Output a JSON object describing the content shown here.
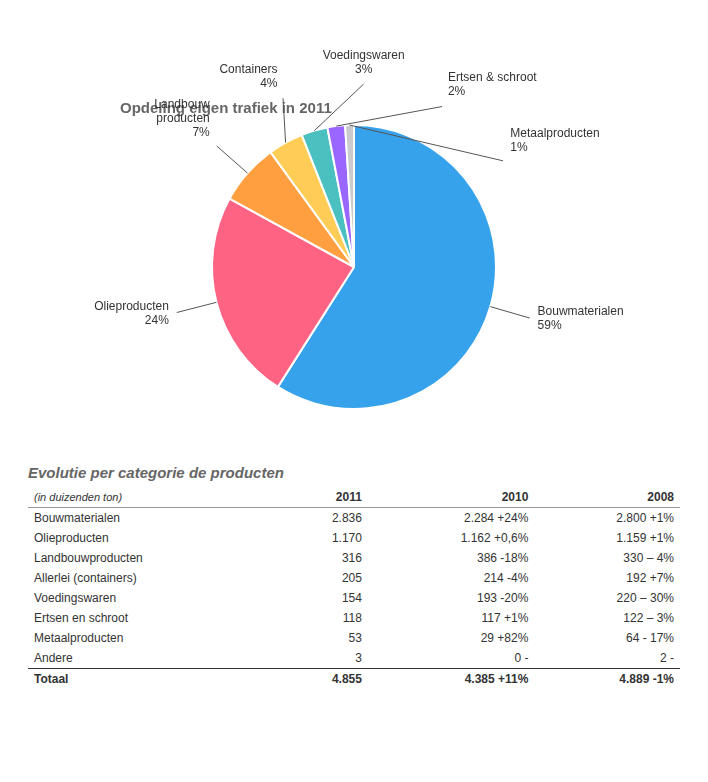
{
  "chart_data": [
    {
      "type": "pie",
      "title": "Opdeling eigen trafiek in 2011",
      "categories": [
        "Bouwmaterialen",
        "Olieproducten",
        "Landbouw\nproducten",
        "Containers",
        "Voedingswaren",
        "Ertsen & schroot",
        "Metaalproducten"
      ],
      "values": [
        59,
        24,
        7,
        4,
        3,
        2,
        1
      ],
      "value_labels": [
        "59%",
        "24%",
        "7%",
        "4%",
        "3%",
        "2%",
        "1%"
      ],
      "data_labels": true
    },
    {
      "type": "table",
      "title": "Evolutie per categorie de producten",
      "unit": "(in duizenden ton)",
      "columns": [
        "2011",
        "2010",
        "2008"
      ],
      "rows": [
        [
          "Bouwmaterialen",
          "2.836",
          "2.284 +24%",
          "2.800  +1%"
        ],
        [
          "Olieproducten",
          "1.170",
          "1.162 +0,6%",
          "1.159  +1%"
        ],
        [
          "Landbouwproducten",
          "316",
          "386 -18%",
          "330  – 4%"
        ],
        [
          "Allerlei (containers)",
          "205",
          "214 -4%",
          "192  +7%"
        ],
        [
          "Voedingswaren",
          "154",
          "193 -20%",
          "220  – 30%"
        ],
        [
          "Ertsen en schroot",
          "118",
          "117 +1%",
          "122  – 3%"
        ],
        [
          "Metaalproducten",
          "53",
          "29 +82%",
          "64  - 17%"
        ],
        [
          "Andere",
          "3",
          "0  -",
          "2   -"
        ]
      ],
      "total": [
        "Totaal",
        "4.855",
        "4.385 +11%",
        "4.889  -1%"
      ]
    }
  ]
}
